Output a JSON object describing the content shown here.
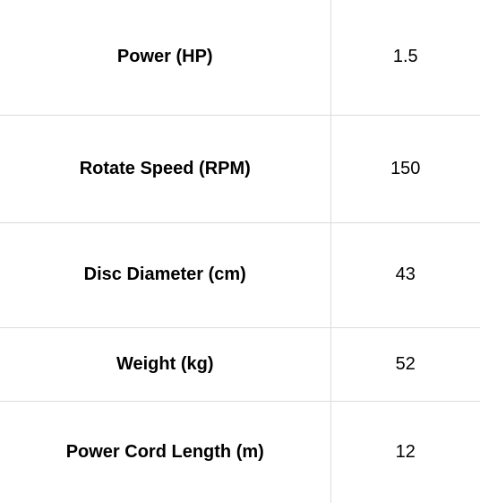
{
  "specs": {
    "rows": [
      {
        "label": "Power (HP)",
        "value": "1.5"
      },
      {
        "label": "Rotate Speed (RPM)",
        "value": "150"
      },
      {
        "label": "Disc Diameter (cm)",
        "value": "43"
      },
      {
        "label": "Weight (kg)",
        "value": "52"
      },
      {
        "label": "Power Cord Length (m)",
        "value": "12"
      }
    ]
  }
}
